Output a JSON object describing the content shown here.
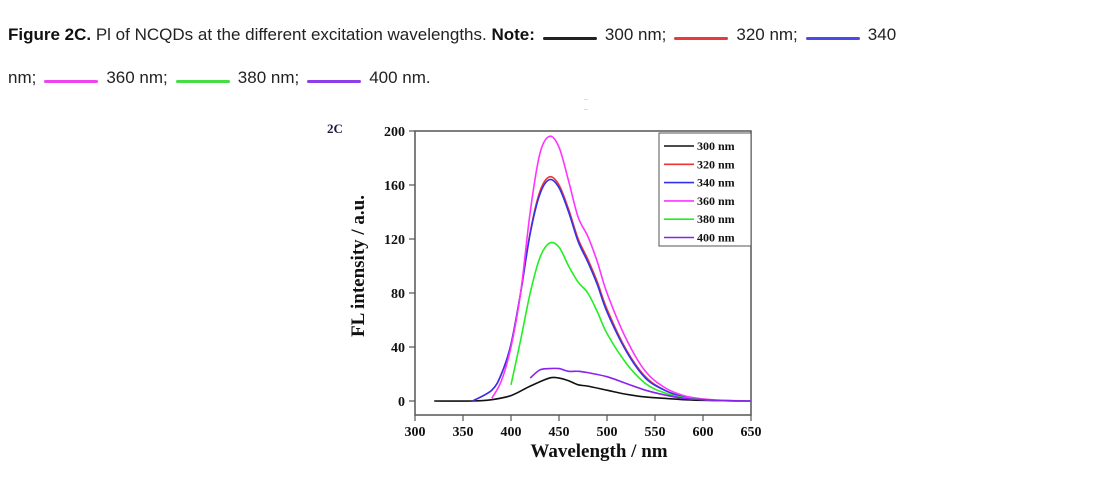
{
  "caption": {
    "figure_label": "Figure 2C.",
    "text": " Pl of NCQDs at the different excitation wavelengths. ",
    "note_label": "Note:",
    "entries": [
      {
        "label": "300 nm;",
        "color": "#222222"
      },
      {
        "label": "320 nm;",
        "color": "#e8393c"
      },
      {
        "label": "340",
        "color": "#4a4ae8"
      },
      {
        "label": "nm;",
        "color": null
      },
      {
        "label": "360 nm;",
        "color": "#ee44ee"
      },
      {
        "label": "380 nm;",
        "color": "#44dd44"
      },
      {
        "label": "400 nm.",
        "color": "#8e3ee8"
      }
    ]
  },
  "panel_label": "2C",
  "chart_data": {
    "type": "line",
    "title": "",
    "xlabel": "Wavelength / nm",
    "ylabel": "FL intensity / a.u.",
    "xlim": [
      300,
      650
    ],
    "ylim": [
      -10,
      200
    ],
    "xticks": [
      300,
      350,
      400,
      450,
      500,
      550,
      600,
      650
    ],
    "yticks": [
      0,
      40,
      80,
      120,
      160,
      200
    ],
    "grid": false,
    "legend_position": "top-right",
    "series": [
      {
        "name": "300 nm",
        "color": "#111111",
        "x": [
          320,
          360,
          380,
          400,
          420,
          440,
          450,
          460,
          470,
          480,
          500,
          520,
          540,
          560,
          580,
          600,
          620,
          650
        ],
        "y": [
          0,
          0,
          1,
          4,
          11,
          17,
          17,
          15,
          12,
          11,
          8,
          5,
          3,
          2,
          1,
          0.5,
          0.2,
          0
        ]
      },
      {
        "name": "320 nm",
        "color": "#ee3333",
        "x": [
          360,
          380,
          390,
          400,
          410,
          420,
          430,
          440,
          450,
          460,
          470,
          480,
          490,
          500,
          520,
          540,
          560,
          580,
          600,
          620,
          650
        ],
        "y": [
          0,
          8,
          20,
          42,
          80,
          125,
          155,
          166,
          160,
          142,
          120,
          105,
          88,
          68,
          38,
          18,
          8,
          3,
          1,
          0.3,
          0
        ]
      },
      {
        "name": "340 nm",
        "color": "#3333ee",
        "x": [
          360,
          380,
          390,
          400,
          410,
          420,
          430,
          440,
          450,
          460,
          470,
          480,
          490,
          500,
          520,
          540,
          560,
          580,
          600,
          620,
          650
        ],
        "y": [
          0,
          8,
          20,
          42,
          80,
          124,
          153,
          164,
          158,
          140,
          118,
          103,
          86,
          66,
          37,
          17,
          8,
          3,
          1,
          0.3,
          0
        ]
      },
      {
        "name": "360 nm",
        "color": "#ff33ff",
        "x": [
          380,
          390,
          400,
          410,
          420,
          430,
          440,
          450,
          460,
          470,
          480,
          490,
          500,
          520,
          540,
          560,
          580,
          600,
          620,
          650
        ],
        "y": [
          2,
          15,
          40,
          80,
          140,
          183,
          196,
          188,
          163,
          136,
          122,
          103,
          80,
          46,
          22,
          10,
          4,
          1.5,
          0.5,
          0
        ]
      },
      {
        "name": "380 nm",
        "color": "#22ee22",
        "x": [
          400,
          410,
          420,
          430,
          440,
          450,
          460,
          470,
          480,
          490,
          500,
          520,
          540,
          560,
          580,
          600,
          620,
          650
        ],
        "y": [
          12,
          45,
          80,
          106,
          117,
          114,
          100,
          88,
          80,
          66,
          50,
          28,
          13,
          6,
          2.5,
          1,
          0.3,
          0
        ]
      },
      {
        "name": "400 nm",
        "color": "#8822ee",
        "x": [
          420,
          430,
          440,
          450,
          460,
          470,
          480,
          500,
          520,
          540,
          560,
          580,
          600,
          620,
          650
        ],
        "y": [
          17,
          23,
          24,
          24,
          22,
          22,
          21,
          18,
          13,
          8,
          4.5,
          2,
          1,
          0.3,
          0
        ]
      }
    ]
  }
}
